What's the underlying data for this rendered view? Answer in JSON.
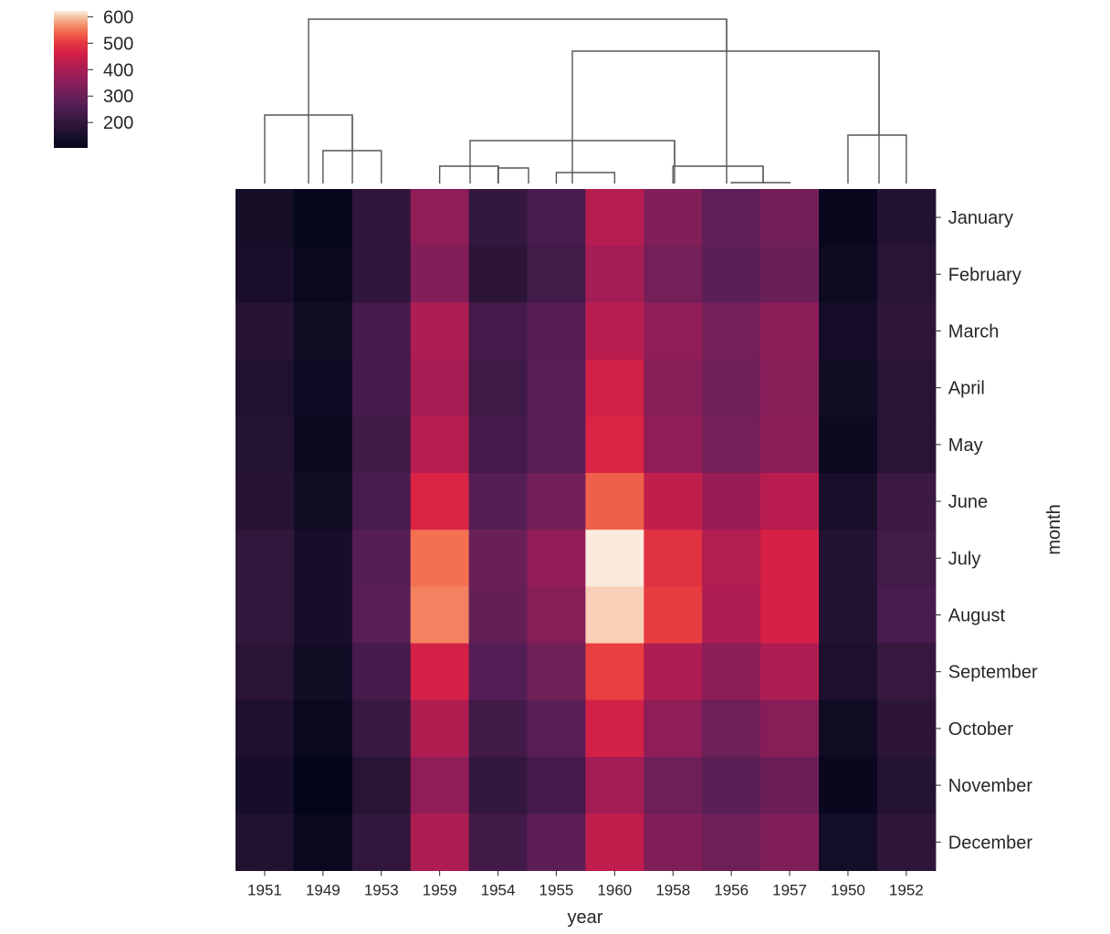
{
  "chart_data": {
    "type": "heatmap",
    "title": "",
    "xlabel": "year",
    "ylabel": "month",
    "x_categories": [
      "1951",
      "1949",
      "1953",
      "1959",
      "1954",
      "1955",
      "1960",
      "1958",
      "1956",
      "1957",
      "1950",
      "1952"
    ],
    "y_categories": [
      "January",
      "February",
      "March",
      "April",
      "May",
      "June",
      "July",
      "August",
      "September",
      "October",
      "November",
      "December"
    ],
    "values": [
      [
        145,
        112,
        196,
        360,
        204,
        242,
        417,
        340,
        284,
        315,
        115,
        171
      ],
      [
        150,
        118,
        196,
        342,
        188,
        233,
        391,
        318,
        277,
        301,
        126,
        180
      ],
      [
        178,
        132,
        236,
        406,
        235,
        267,
        419,
        362,
        317,
        356,
        141,
        193
      ],
      [
        163,
        129,
        235,
        396,
        227,
        269,
        461,
        348,
        313,
        348,
        135,
        181
      ],
      [
        172,
        121,
        229,
        420,
        234,
        270,
        472,
        363,
        318,
        355,
        125,
        183
      ],
      [
        178,
        135,
        243,
        472,
        264,
        315,
        535,
        435,
        374,
        422,
        149,
        218
      ],
      [
        199,
        148,
        264,
        548,
        302,
        364,
        622,
        491,
        413,
        465,
        170,
        230
      ],
      [
        199,
        148,
        272,
        559,
        293,
        347,
        606,
        505,
        405,
        467,
        170,
        242
      ],
      [
        184,
        136,
        237,
        463,
        259,
        312,
        508,
        404,
        355,
        404,
        158,
        209
      ],
      [
        162,
        119,
        211,
        407,
        229,
        274,
        461,
        359,
        306,
        347,
        133,
        191
      ],
      [
        146,
        104,
        180,
        362,
        203,
        237,
        390,
        310,
        271,
        305,
        114,
        172
      ],
      [
        166,
        118,
        201,
        405,
        229,
        278,
        432,
        337,
        306,
        336,
        140,
        194
      ]
    ],
    "colorbar": {
      "ticks": [
        200,
        300,
        400,
        500,
        600
      ],
      "range": [
        104,
        622
      ],
      "colormap": "rocket"
    },
    "dendrogram": "column clustering shown above heatmap"
  }
}
